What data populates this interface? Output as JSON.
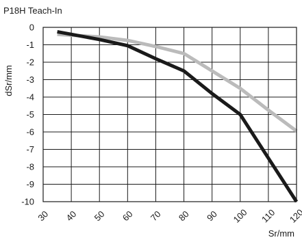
{
  "chart_data": {
    "type": "line",
    "title": "P18H Teach-In",
    "xlabel": "Sr/mm",
    "ylabel": "dSr/mm",
    "xlim": [
      30,
      120
    ],
    "ylim": [
      -10,
      0
    ],
    "x_ticks": [
      30,
      40,
      50,
      60,
      70,
      80,
      90,
      100,
      110,
      120
    ],
    "y_ticks": [
      0,
      -1,
      -2,
      -3,
      -4,
      -5,
      -6,
      -7,
      -8,
      -9,
      -10
    ],
    "grid": true,
    "series": [
      {
        "color": "#1a1a1a",
        "x": [
          35,
          50,
          60,
          70,
          80,
          90,
          100,
          110,
          120
        ],
        "y": [
          -0.25,
          -0.7,
          -1.05,
          -1.8,
          -2.5,
          -3.8,
          -5.0,
          -7.5,
          -10.0
        ]
      },
      {
        "color": "#bbbbbb",
        "x": [
          35,
          50,
          60,
          70,
          80,
          90,
          100,
          110,
          120
        ],
        "y": [
          -0.4,
          -0.55,
          -0.75,
          -1.1,
          -1.5,
          -2.5,
          -3.5,
          -4.75,
          -5.95
        ]
      }
    ]
  }
}
